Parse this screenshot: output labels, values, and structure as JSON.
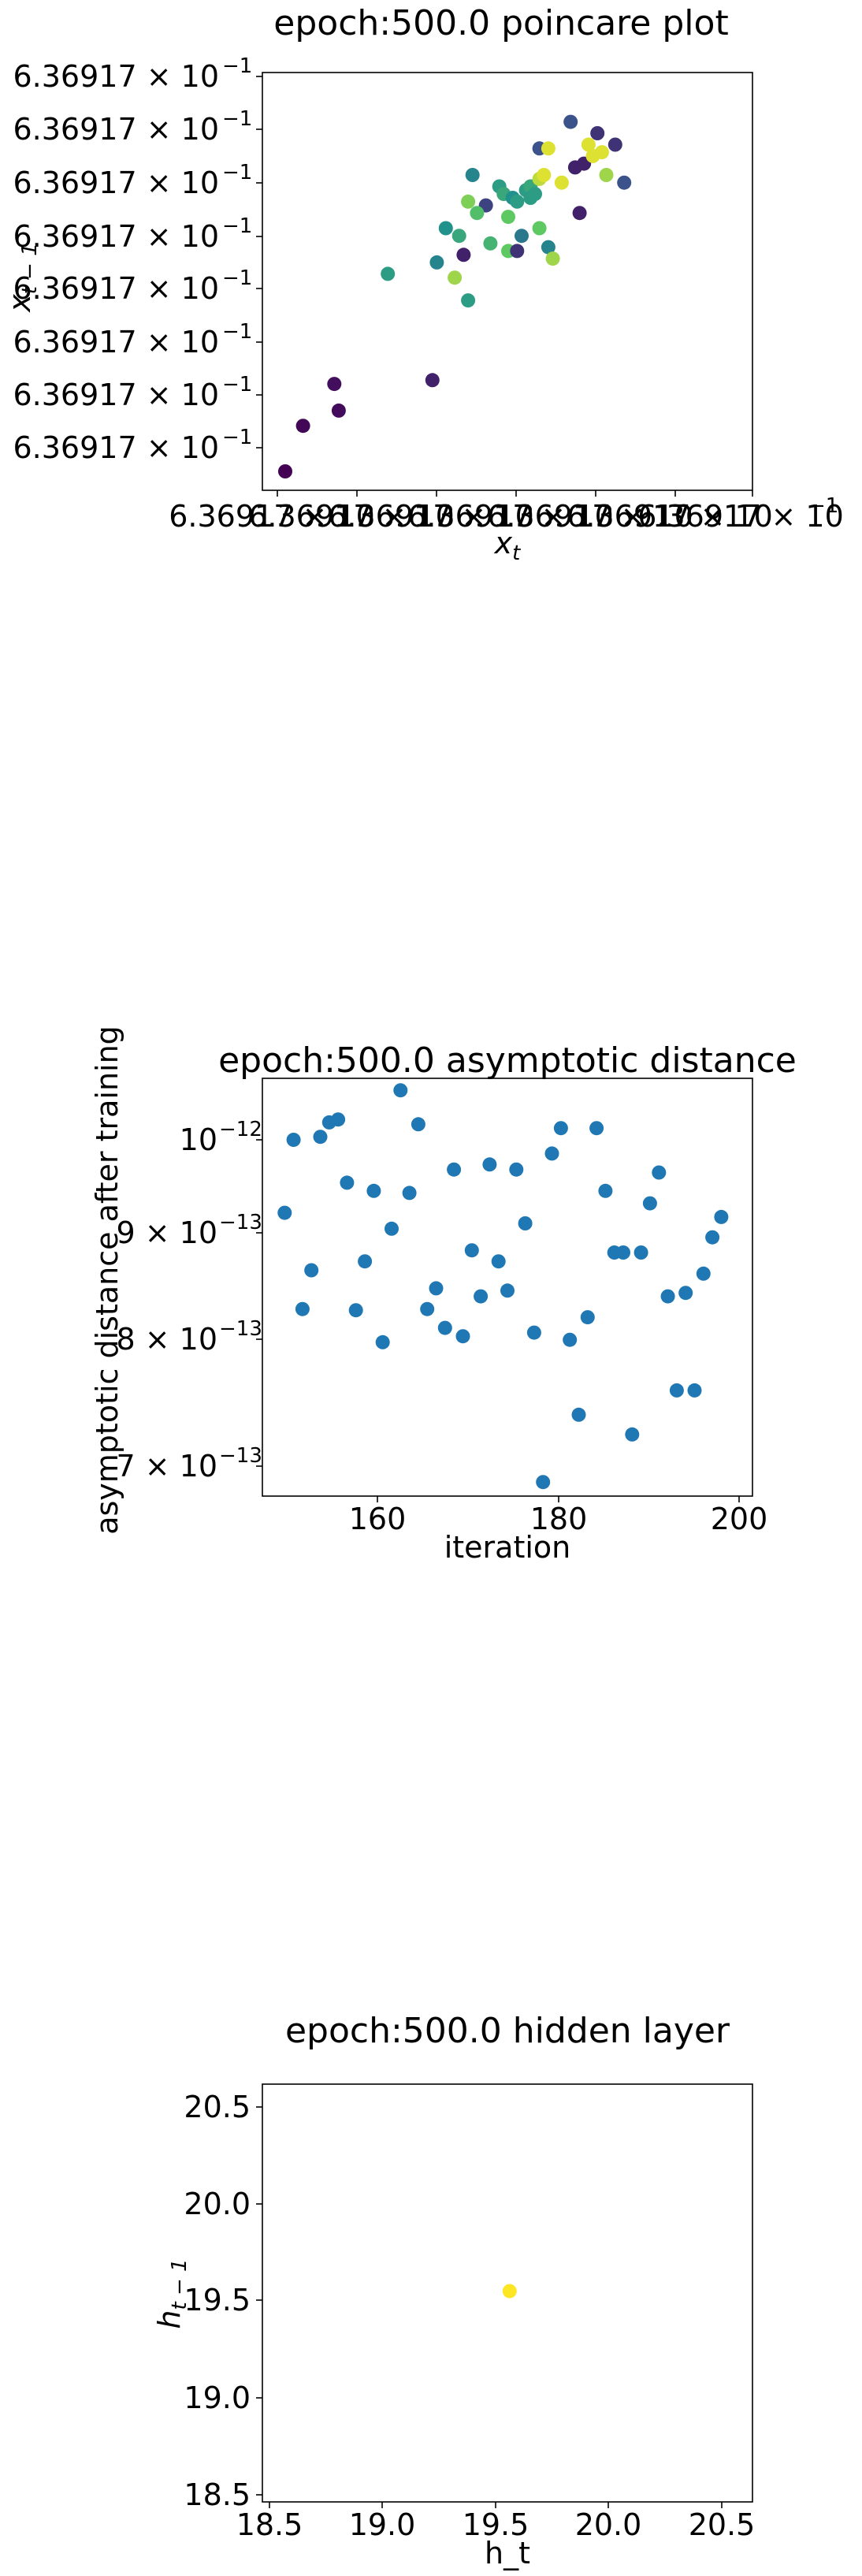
{
  "charts": [
    {
      "title": "epoch:500.0 poincare plot",
      "xlabel_main": "x",
      "xlabel_sub": "t",
      "ylabel_main": "x",
      "ylabel_sub": "t − 1",
      "ytick_labels": [
        "6.36917 × 10",
        "6.36917 × 10",
        "6.36917 × 10",
        "6.36917 × 10",
        "6.36917 × 10",
        "6.36917 × 10",
        "6.36917 × 10",
        "6.36917 × 10"
      ],
      "ytick_exp": "−1",
      "xtick_labels": [
        "6.36917 × 10",
        "6.36917 × 10",
        "6.36917 × 10",
        "6.36917 × 10",
        "6.36917 × 10",
        "6.36917 × 10",
        "6.36917 × 10"
      ],
      "xtick_exp": "−1"
    },
    {
      "title": "epoch:500.0 asymptotic distance",
      "xlabel": "iteration",
      "ylabel": "asymptotic distance after training",
      "xtick_labels": [
        "160",
        "180",
        "200"
      ],
      "ytick_labels": [
        {
          "mant": "",
          "base": "10",
          "exp": "−12"
        },
        {
          "mant": "9 × ",
          "base": "10",
          "exp": "−13"
        },
        {
          "mant": "8 × ",
          "base": "10",
          "exp": "−13"
        },
        {
          "mant": "7 × ",
          "base": "10",
          "exp": "−13"
        }
      ]
    },
    {
      "title": "epoch:500.0 hidden layer",
      "xlabel": "h_t",
      "ylabel_main": "h",
      "ylabel_sub": "t − 1",
      "xtick_labels": [
        "18.5",
        "19.0",
        "19.5",
        "20.0",
        "20.5"
      ],
      "ytick_labels": [
        "18.5",
        "19.0",
        "19.5",
        "20.0",
        "20.5"
      ]
    }
  ],
  "chart_data": [
    {
      "type": "scatter",
      "title": "epoch:500.0 poincare plot",
      "xlabel": "x_t",
      "ylabel": "x_{t-1}",
      "colormap": "viridis",
      "points": [
        {
          "x": 0.0,
          "y": 0.0,
          "c": 0.0
        },
        {
          "x": 0.04,
          "y": 0.12,
          "c": 0.02
        },
        {
          "x": 0.11,
          "y": 0.23,
          "c": 0.04
        },
        {
          "x": 0.12,
          "y": 0.16,
          "c": 0.03
        },
        {
          "x": 0.33,
          "y": 0.24,
          "c": 0.1
        },
        {
          "x": 0.23,
          "y": 0.52,
          "c": 0.55
        },
        {
          "x": 0.34,
          "y": 0.55,
          "c": 0.45
        },
        {
          "x": 0.36,
          "y": 0.64,
          "c": 0.5
        },
        {
          "x": 0.4,
          "y": 0.57,
          "c": 0.1
        },
        {
          "x": 0.38,
          "y": 0.51,
          "c": 0.85
        },
        {
          "x": 0.39,
          "y": 0.62,
          "c": 0.6
        },
        {
          "x": 0.41,
          "y": 0.45,
          "c": 0.55
        },
        {
          "x": 0.45,
          "y": 0.7,
          "c": 0.2
        },
        {
          "x": 0.41,
          "y": 0.71,
          "c": 0.8
        },
        {
          "x": 0.43,
          "y": 0.68,
          "c": 0.7
        },
        {
          "x": 0.42,
          "y": 0.78,
          "c": 0.45
        },
        {
          "x": 0.46,
          "y": 0.6,
          "c": 0.65
        },
        {
          "x": 0.48,
          "y": 0.75,
          "c": 0.55
        },
        {
          "x": 0.49,
          "y": 0.73,
          "c": 0.6
        },
        {
          "x": 0.51,
          "y": 0.72,
          "c": 0.5
        },
        {
          "x": 0.52,
          "y": 0.71,
          "c": 0.55
        },
        {
          "x": 0.5,
          "y": 0.67,
          "c": 0.75
        },
        {
          "x": 0.5,
          "y": 0.58,
          "c": 0.75
        },
        {
          "x": 0.52,
          "y": 0.58,
          "c": 0.15
        },
        {
          "x": 0.53,
          "y": 0.62,
          "c": 0.4
        },
        {
          "x": 0.54,
          "y": 0.74,
          "c": 0.55
        },
        {
          "x": 0.55,
          "y": 0.75,
          "c": 0.6
        },
        {
          "x": 0.55,
          "y": 0.72,
          "c": 0.55
        },
        {
          "x": 0.56,
          "y": 0.73,
          "c": 0.55
        },
        {
          "x": 0.57,
          "y": 0.77,
          "c": 0.9
        },
        {
          "x": 0.57,
          "y": 0.64,
          "c": 0.75
        },
        {
          "x": 0.57,
          "y": 0.85,
          "c": 0.25
        },
        {
          "x": 0.58,
          "y": 0.78,
          "c": 0.95
        },
        {
          "x": 0.59,
          "y": 0.85,
          "c": 0.95
        },
        {
          "x": 0.59,
          "y": 0.59,
          "c": 0.45
        },
        {
          "x": 0.6,
          "y": 0.56,
          "c": 0.85
        },
        {
          "x": 0.62,
          "y": 0.76,
          "c": 0.95
        },
        {
          "x": 0.64,
          "y": 0.92,
          "c": 0.25
        },
        {
          "x": 0.65,
          "y": 0.8,
          "c": 0.1
        },
        {
          "x": 0.66,
          "y": 0.68,
          "c": 0.1
        },
        {
          "x": 0.67,
          "y": 0.81,
          "c": 0.1
        },
        {
          "x": 0.68,
          "y": 0.86,
          "c": 0.95
        },
        {
          "x": 0.69,
          "y": 0.83,
          "c": 0.95
        },
        {
          "x": 0.7,
          "y": 0.89,
          "c": 0.15
        },
        {
          "x": 0.71,
          "y": 0.84,
          "c": 0.95
        },
        {
          "x": 0.72,
          "y": 0.78,
          "c": 0.85
        },
        {
          "x": 0.74,
          "y": 0.86,
          "c": 0.15
        },
        {
          "x": 0.76,
          "y": 0.76,
          "c": 0.25
        }
      ]
    },
    {
      "type": "scatter",
      "title": "epoch:500.0 asymptotic distance",
      "xlabel": "iteration",
      "ylabel": "asymptotic distance after training",
      "xlim": [
        147.5,
        202.5
      ],
      "yscale": "log",
      "ylim": [
        6.8e-13,
        1.05e-12
      ],
      "color": "#1f77b4",
      "points": [
        {
          "x": 150,
          "y": 9.13e-13
        },
        {
          "x": 151,
          "y": 9.85e-13
        },
        {
          "x": 152,
          "y": 8.26e-13
        },
        {
          "x": 153,
          "y": 8.6e-13
        },
        {
          "x": 154,
          "y": 9.88e-13
        },
        {
          "x": 155,
          "y": 1.003e-12
        },
        {
          "x": 156,
          "y": 1.006e-12
        },
        {
          "x": 157,
          "y": 9.42e-13
        },
        {
          "x": 158,
          "y": 8.25e-13
        },
        {
          "x": 159,
          "y": 8.68e-13
        },
        {
          "x": 160,
          "y": 9.34e-13
        },
        {
          "x": 161,
          "y": 7.98e-13
        },
        {
          "x": 162,
          "y": 8.98e-13
        },
        {
          "x": 163,
          "y": 1.037e-12
        },
        {
          "x": 164,
          "y": 9.32e-13
        },
        {
          "x": 165,
          "y": 1.001e-12
        },
        {
          "x": 166,
          "y": 8.26e-13
        },
        {
          "x": 167,
          "y": 8.44e-13
        },
        {
          "x": 168,
          "y": 8.1e-13
        },
        {
          "x": 169,
          "y": 9.55e-13
        },
        {
          "x": 170,
          "y": 8.03e-13
        },
        {
          "x": 171,
          "y": 8.78e-13
        },
        {
          "x": 172,
          "y": 8.37e-13
        },
        {
          "x": 173,
          "y": 9.6e-13
        },
        {
          "x": 174,
          "y": 8.68e-13
        },
        {
          "x": 175,
          "y": 8.42e-13
        },
        {
          "x": 176,
          "y": 9.55e-13
        },
        {
          "x": 177,
          "y": 9.03e-13
        },
        {
          "x": 178,
          "y": 8.06e-13
        },
        {
          "x": 179,
          "y": 6.9e-13
        },
        {
          "x": 180,
          "y": 9.71e-13
        },
        {
          "x": 181,
          "y": 9.97e-13
        },
        {
          "x": 182,
          "y": 8e-13
        },
        {
          "x": 183,
          "y": 7.4e-13
        },
        {
          "x": 184,
          "y": 8.19e-13
        },
        {
          "x": 185,
          "y": 9.97e-13
        },
        {
          "x": 186,
          "y": 9.34e-13
        },
        {
          "x": 187,
          "y": 8.76e-13
        },
        {
          "x": 188,
          "y": 8.76e-13
        },
        {
          "x": 189,
          "y": 7.25e-13
        },
        {
          "x": 190,
          "y": 8.76e-13
        },
        {
          "x": 191,
          "y": 9.22e-13
        },
        {
          "x": 192,
          "y": 9.52e-13
        },
        {
          "x": 193,
          "y": 8.37e-13
        },
        {
          "x": 194,
          "y": 7.59e-13
        },
        {
          "x": 195,
          "y": 8.4e-13
        },
        {
          "x": 196,
          "y": 7.59e-13
        },
        {
          "x": 197,
          "y": 8.57e-13
        },
        {
          "x": 198,
          "y": 8.9e-13
        },
        {
          "x": 199,
          "y": 9.09e-13
        }
      ]
    },
    {
      "type": "scatter",
      "title": "epoch:500.0 hidden layer",
      "xlabel": "h_t",
      "ylabel": "h_{t-1}",
      "xlim": [
        18.45,
        20.65
      ],
      "ylim": [
        18.45,
        20.65
      ],
      "color": "#fde725",
      "points": [
        {
          "x": 19.56,
          "y": 19.56
        }
      ]
    }
  ]
}
